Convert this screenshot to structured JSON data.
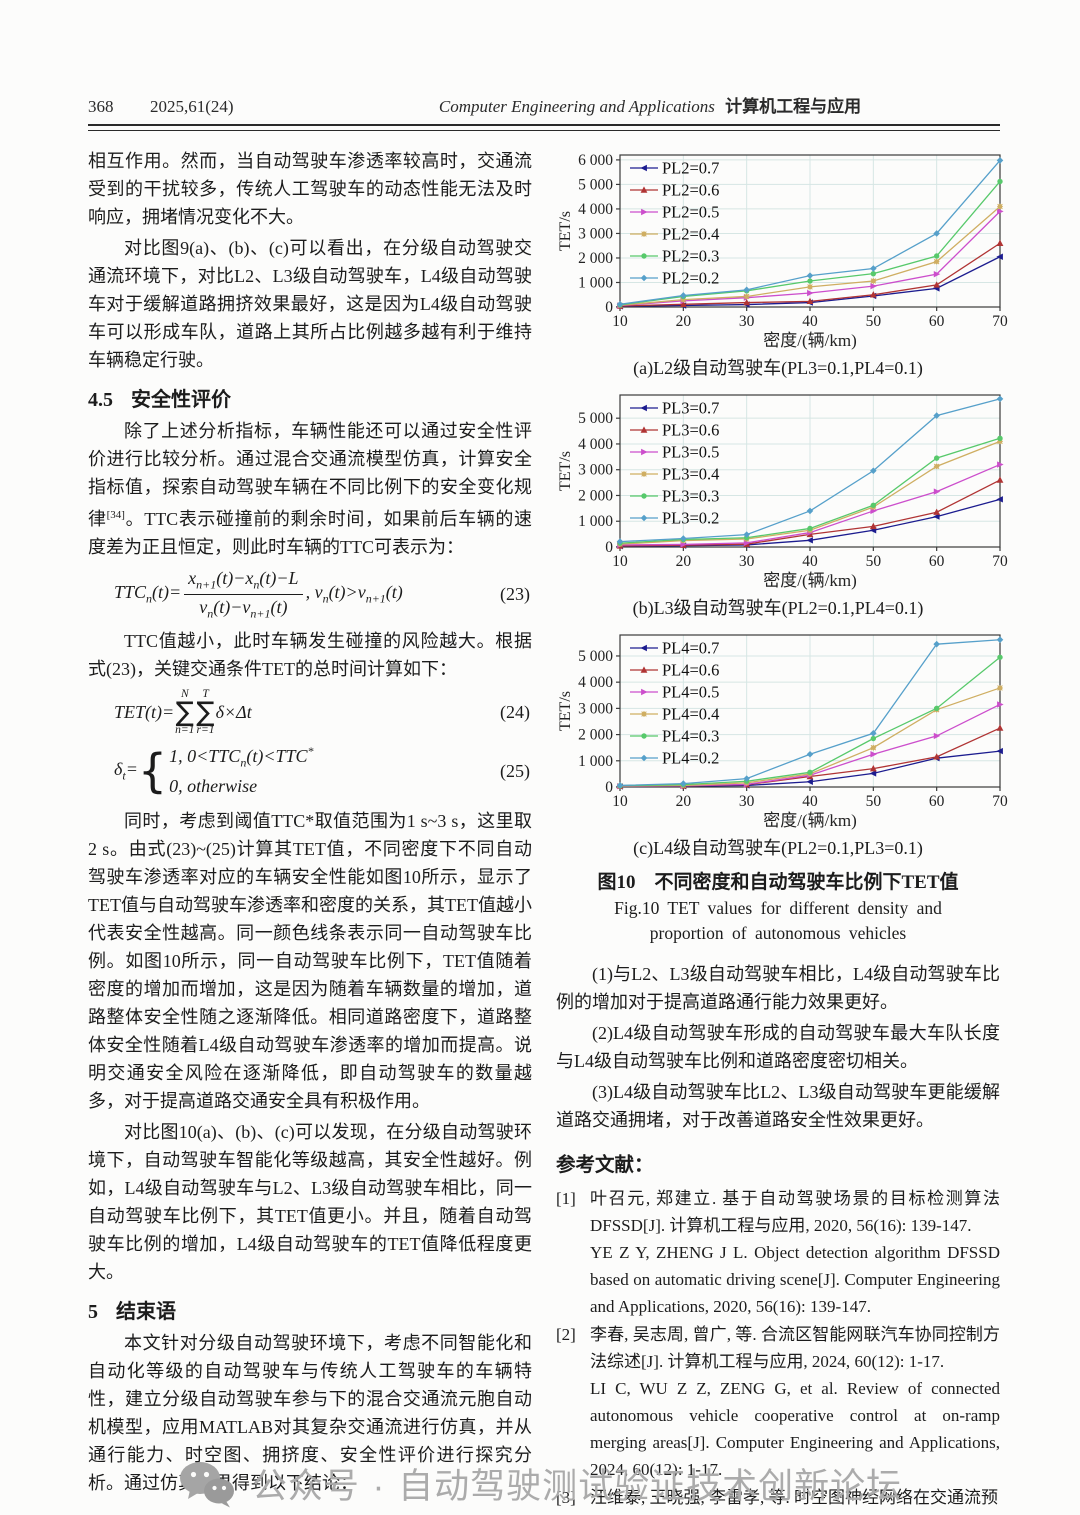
{
  "header": {
    "page_number": "368",
    "issue": "2025,61(24)",
    "journal_en": "Computer Engineering and Applications",
    "journal_cn": "计算机工程与应用"
  },
  "left_column": {
    "para1": "相互作用。然而，当自动驾驶车渗透率较高时，交通流受到的干扰较多，传统人工驾驶车的动态性能无法及时响应，拥堵情况变化不大。",
    "para2": "对比图9(a)、(b)、(c)可以看出，在分级自动驾驶交通流环境下，对比L2、L3级自动驾驶车，L4级自动驾驶车对于缓解道路拥挤效果最好，这是因为L4级自动驾驶车可以形成车队，道路上其所占比例越多越有利于维持车辆稳定行驶。",
    "section45_num": "4.5",
    "section45_title": "安全性评价",
    "para3a": "除了上述分析指标，车辆性能还可以通过安全性评价进行比较分析。通过混合交通流模型仿真，计算安全指标值，探索自动驾驶车辆在不同比例下的安全变化规律",
    "para3_sup": "[34]",
    "para3b": "。TTC表示碰撞前的剩余时间，如果前后车辆的速度差为正且恒定，则此时车辆的TTC可表示为：",
    "eq23": {
      "lhs1": "TTC",
      "lhs_sub": "n",
      "lhs2": "(t)=",
      "num1": "x",
      "num1_sub": "n+1",
      "num2": "(t)−x",
      "num2_sub": "n",
      "num3": "(t)−L",
      "den1": "v",
      "den1_sub": "n",
      "den2": "(t)−v",
      "den2_sub": "n+1",
      "den3": "(t)",
      "cond1": ", v",
      "cond1_sub": "n",
      "cond2": "(t)>v",
      "cond2_sub": "n+1",
      "cond3": "(t)",
      "label": "(23)"
    },
    "para4": "TTC值越小，此时车辆发生碰撞的风险越大。根据式(23)，关键交通条件TET的总时间计算如下：",
    "eq24": {
      "lhs": "TET(t)=",
      "sum1_top": "N",
      "sum1_bot": "n=1",
      "sum2_top": "T",
      "sum2_bot": "r=1",
      "body": "δ×Δt",
      "label": "(24)"
    },
    "eq25": {
      "lhs1": "δ",
      "lhs_sub": "t",
      "lhs2": "=",
      "case1a": "1, 0<TTC",
      "case1_sub": "n",
      "case1b": "(t)<TTC",
      "case1_sup": "*",
      "case2": "0, otherwise",
      "label": "(25)"
    },
    "para5": "同时，考虑到阈值TTC*取值范围为1 s~3 s，这里取2 s。由式(23)~(25)计算其TET值，不同密度下不同自动驾驶车渗透率对应的车辆安全性能如图10所示，显示了TET值与自动驾驶车渗透率和密度的关系，其TET值越小代表安全性越高。同一颜色线条表示同一自动驾驶车比例。如图10所示，同一自动驾驶车比例下，TET值随着密度的增加而增加，这是因为随着车辆数量的增加，道路整体安全性随之逐渐降低。相同道路密度下，道路整体安全性随着L4级自动驾驶车渗透率的增加而提高。说明交通安全风险在逐渐降低，即自动驾驶车的数量越多，对于提高道路交通安全具有积极作用。",
    "para6": "对比图10(a)、(b)、(c)可以发现，在分级自动驾驶环境下，自动驾驶车智能化等级越高，其安全性越好。例如，L4级自动驾驶车与L2、L3级自动驾驶车相比，同一自动驾驶车比例下，其TET值更小。并且，随着自动驾驶车比例的增加，L4级自动驾驶车的TET值降低程度更大。",
    "section5_num": "5",
    "section5_title": "结束语",
    "para7": "本文针对分级自动驾驶环境下，考虑不同智能化和自动化等级的自动驾驶车与传统人工驾驶车的车辆特性，建立分级自动驾驶车参与下的混合交通流元胞自动机模型，应用MATLAB对其复杂交通流进行仿真，并从通行能力、时空图、拥挤度、安全性评价进行探究分析。通过仿真结果得到以下结论："
  },
  "right_column": {
    "fig_caption_cn": "图10　不同密度和自动驾驶车比例下TET值",
    "fig_caption_en1": "Fig.10  TET values for different density and",
    "fig_caption_en2": "proportion of autonomous vehicles",
    "conclusions": [
      "(1)与L2、L3级自动驾驶车相比，L4级自动驾驶车比例的增加对于提高道路通行能力效果更好。",
      "(2)L4级自动驾驶车形成的自动驾驶车最大车队长度与L4级自动驾驶车比例和道路密度密切相关。",
      "(3)L4级自动驾驶车比L2、L3级自动驾驶车更能缓解道路交通拥堵，对于改善道路安全性效果更好。"
    ],
    "references_title": "参考文献：",
    "references": [
      {
        "label": "[1]",
        "cn": "叶召元, 郑建立. 基于自动驾驶场景的目标检测算法DFSSD[J]. 计算机工程与应用, 2020, 56(16): 139-147.",
        "en": "YE Z Y, ZHENG J L. Object detection algorithm DFSSD based on automatic driving scene[J]. Computer Engineering and Applications, 2020, 56(16): 139-147."
      },
      {
        "label": "[2]",
        "cn": "李春, 吴志周, 曾广, 等. 合流区智能网联汽车协同控制方法综述[J]. 计算机工程与应用, 2024, 60(12): 1-17.",
        "en": "LI C, WU Z Z, ZENG G, et al. Review of connected autonomous vehicle cooperative control at on-ramp merging areas[J]. Computer Engineering and Applications, 2024, 60(12): 1-17."
      },
      {
        "label": "[3]",
        "cn": "汪维泰, 王晓强, 李雷孝, 等. 时空图神经网络在交通流预",
        "en": ""
      }
    ]
  },
  "chart_data": [
    {
      "type": "line",
      "caption": "(a)L2级自动驾驶车(PL3=0.1,PL4=0.1)",
      "xlabel": "密度/(辆/km)",
      "ylabel": "TET/s",
      "x": [
        10,
        20,
        30,
        40,
        50,
        60,
        70
      ],
      "xlim": [
        10,
        70
      ],
      "ylim": [
        0,
        6200
      ],
      "y_ticks": [
        0,
        1000,
        2000,
        3000,
        4000,
        5000,
        6000
      ],
      "grid": true,
      "legend_position": "top-left",
      "series": [
        {
          "name": "PL2=0.7",
          "color": "#1c1c8f",
          "marker": "tri-left",
          "values": [
            30,
            60,
            100,
            180,
            450,
            760,
            2050
          ]
        },
        {
          "name": "PL2=0.6",
          "color": "#b03434",
          "marker": "tri-up",
          "values": [
            40,
            110,
            180,
            230,
            500,
            900,
            2600
          ]
        },
        {
          "name": "PL2=0.5",
          "color": "#cc4ecc",
          "marker": "tri-right",
          "values": [
            60,
            250,
            380,
            570,
            850,
            1340,
            3900
          ]
        },
        {
          "name": "PL2=0.4",
          "color": "#cfae62",
          "marker": "star",
          "values": [
            70,
            300,
            430,
            820,
            1060,
            1850,
            4100
          ]
        },
        {
          "name": "PL2=0.3",
          "color": "#57c96b",
          "marker": "circle",
          "values": [
            90,
            430,
            660,
            1060,
            1360,
            2080,
            5120
          ]
        },
        {
          "name": "PL2=0.2",
          "color": "#56a0ca",
          "marker": "diamond",
          "values": [
            110,
            470,
            700,
            1280,
            1570,
            3000,
            5980
          ]
        }
      ]
    },
    {
      "type": "line",
      "caption": "(b)L3级自动驾驶车(PL2=0.1,PL4=0.1)",
      "xlabel": "密度/(辆/km)",
      "ylabel": "TET/s",
      "x": [
        10,
        20,
        30,
        40,
        50,
        60,
        70
      ],
      "xlim": [
        10,
        70
      ],
      "ylim": [
        0,
        5900
      ],
      "y_ticks": [
        0,
        1000,
        2000,
        3000,
        4000,
        5000
      ],
      "grid": true,
      "legend_position": "top-left",
      "series": [
        {
          "name": "PL3=0.7",
          "color": "#1c1c8f",
          "marker": "tri-left",
          "values": [
            30,
            50,
            80,
            260,
            650,
            1180,
            1850
          ]
        },
        {
          "name": "PL3=0.6",
          "color": "#b03434",
          "marker": "tri-up",
          "values": [
            40,
            70,
            110,
            490,
            800,
            1350,
            2600
          ]
        },
        {
          "name": "PL3=0.5",
          "color": "#cc4ecc",
          "marker": "tri-right",
          "values": [
            80,
            100,
            160,
            560,
            1400,
            2150,
            3200
          ]
        },
        {
          "name": "PL3=0.4",
          "color": "#cfae62",
          "marker": "star",
          "values": [
            110,
            250,
            310,
            650,
            1550,
            3130,
            4100
          ]
        },
        {
          "name": "PL3=0.3",
          "color": "#57c96b",
          "marker": "circle",
          "values": [
            150,
            290,
            360,
            720,
            1620,
            3450,
            4220
          ]
        },
        {
          "name": "PL3=0.2",
          "color": "#56a0ca",
          "marker": "diamond",
          "values": [
            210,
            330,
            480,
            1400,
            2960,
            5100,
            5750
          ]
        }
      ]
    },
    {
      "type": "line",
      "caption": "(c)L4级自动驾驶车(PL2=0.1,PL3=0.1)",
      "xlabel": "密度/(辆/km)",
      "ylabel": "TET/s",
      "x": [
        10,
        20,
        30,
        40,
        50,
        60,
        70
      ],
      "xlim": [
        10,
        70
      ],
      "ylim": [
        0,
        5800
      ],
      "y_ticks": [
        0,
        1000,
        2000,
        3000,
        4000,
        5000
      ],
      "grid": true,
      "legend_position": "top-left",
      "series": [
        {
          "name": "PL4=0.7",
          "color": "#1c1c8f",
          "marker": "tri-left",
          "values": [
            20,
            30,
            60,
            200,
            520,
            1100,
            1370
          ]
        },
        {
          "name": "PL4=0.6",
          "color": "#b03434",
          "marker": "tri-up",
          "values": [
            30,
            40,
            90,
            400,
            700,
            1150,
            2250
          ]
        },
        {
          "name": "PL4=0.5",
          "color": "#cc4ecc",
          "marker": "tri-right",
          "values": [
            30,
            50,
            100,
            450,
            1250,
            1950,
            3150
          ]
        },
        {
          "name": "PL4=0.4",
          "color": "#cfae62",
          "marker": "star",
          "values": [
            40,
            60,
            160,
            500,
            1500,
            2950,
            3780
          ]
        },
        {
          "name": "PL4=0.3",
          "color": "#57c96b",
          "marker": "circle",
          "values": [
            50,
            90,
            220,
            560,
            1850,
            3000,
            4950
          ]
        },
        {
          "name": "PL4=0.2",
          "color": "#56a0ca",
          "marker": "diamond",
          "values": [
            60,
            130,
            320,
            1250,
            2050,
            5450,
            5620
          ]
        }
      ]
    }
  ],
  "watermark": {
    "prefix": "公众号",
    "dot": "·",
    "name": "自动驾驶测试验证技术创新论坛"
  },
  "colors": {
    "grid": "#d6e6e4",
    "axis": "#3a3a3a",
    "watermark_gray": "#ababab"
  }
}
